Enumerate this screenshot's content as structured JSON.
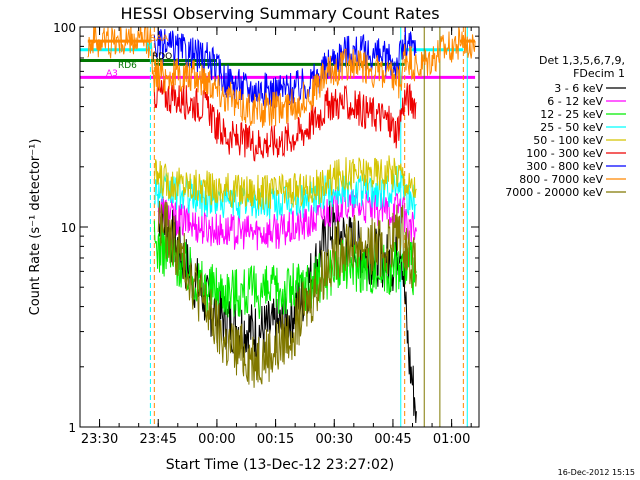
{
  "chart_data": {
    "type": "line",
    "title": "HESSI Observing Summary Count Rates",
    "xlabel": "Start Time (13-Dec-12 23:27:02)",
    "ylabel": "Count Rate (s⁻¹ detector⁻¹)",
    "y_scale": "log",
    "ylim": [
      1,
      100
    ],
    "xlim": [
      "23:25",
      "01:07"
    ],
    "x_ticks": [
      "23:30",
      "23:45",
      "00:00",
      "00:15",
      "00:30",
      "00:45",
      "01:00"
    ],
    "y_ticks": [
      "1",
      "10",
      "100"
    ],
    "timestamp": "16-Dec-2012 15:15",
    "legend": {
      "position": "right",
      "header": [
        "Det 1,3,5,6,7,9,",
        "FDecim 1"
      ],
      "entries": [
        {
          "label": "3 - 6 keV",
          "color": "#000000"
        },
        {
          "label": "6 - 12 keV",
          "color": "#ff00ff"
        },
        {
          "label": "12 - 25 keV",
          "color": "#00ee00"
        },
        {
          "label": "25 - 50 keV",
          "color": "#00ffff"
        },
        {
          "label": "50 - 100 keV",
          "color": "#d4c400"
        },
        {
          "label": "100 - 300 keV",
          "color": "#ee0000"
        },
        {
          "label": "300 - 800 keV",
          "color": "#0000ff"
        },
        {
          "label": "800 - 7000 keV",
          "color": "#ff8800"
        },
        {
          "label": "7000 - 20000 keV",
          "color": "#807800"
        }
      ]
    },
    "flag_labels": [
      {
        "text": "SAA",
        "color": "#ff8800"
      },
      {
        "text": "N",
        "color": "#00ffff"
      },
      {
        "text": "RDO",
        "color": "#000000"
      },
      {
        "text": "RD6",
        "color": "#007700"
      },
      {
        "text": "A3",
        "color": "#ff00ff"
      }
    ],
    "series": [
      {
        "name": "3 - 6 keV",
        "color": "#000000",
        "points": [
          [
            "23:45",
            12
          ],
          [
            "23:48",
            9.5
          ],
          [
            "23:53",
            6
          ],
          [
            "23:58",
            4
          ],
          [
            "00:03",
            3.3
          ],
          [
            "00:10",
            3
          ],
          [
            "00:17",
            3.2
          ],
          [
            "00:22",
            4.5
          ],
          [
            "00:26",
            7
          ],
          [
            "00:29",
            10
          ],
          [
            "00:32",
            9
          ],
          [
            "00:37",
            7.5
          ],
          [
            "00:42",
            7
          ],
          [
            "00:45",
            6.5
          ],
          [
            "00:47",
            9
          ],
          [
            "00:49",
            2.3
          ],
          [
            "00:51",
            1.2
          ]
        ]
      },
      {
        "name": "6 - 12 keV",
        "color": "#ff00ff",
        "points": [
          [
            "23:45",
            12.5
          ],
          [
            "23:50",
            11
          ],
          [
            "23:56",
            10
          ],
          [
            "00:02",
            9.5
          ],
          [
            "00:10",
            9.4
          ],
          [
            "00:18",
            9.6
          ],
          [
            "00:24",
            10.5
          ],
          [
            "00:28",
            12
          ],
          [
            "00:32",
            13
          ],
          [
            "00:38",
            12.5
          ],
          [
            "00:44",
            12
          ],
          [
            "00:47",
            13
          ],
          [
            "00:49",
            10
          ],
          [
            "00:51",
            9.5
          ]
        ]
      },
      {
        "name": "12 - 25 keV",
        "color": "#00ee00",
        "points": [
          [
            "23:44",
            8.2
          ],
          [
            "23:47",
            7.5
          ],
          [
            "23:52",
            6.3
          ],
          [
            "23:57",
            5
          ],
          [
            "00:03",
            4.8
          ],
          [
            "00:10",
            4.7
          ],
          [
            "00:17",
            4.8
          ],
          [
            "00:22",
            5.1
          ],
          [
            "00:27",
            5.6
          ],
          [
            "00:30",
            6.3
          ],
          [
            "00:35",
            6.5
          ],
          [
            "00:42",
            6.1
          ],
          [
            "00:47",
            6.5
          ],
          [
            "00:50",
            6.2
          ],
          [
            "00:51",
            6
          ]
        ]
      },
      {
        "name": "25 - 50 keV",
        "color": "#00ffff",
        "points": [
          [
            "23:44",
            15.5
          ],
          [
            "23:48",
            15
          ],
          [
            "23:53",
            14.3
          ],
          [
            "23:58",
            13.7
          ],
          [
            "00:05",
            13.4
          ],
          [
            "00:12",
            13.2
          ],
          [
            "00:18",
            13.3
          ],
          [
            "00:24",
            13.8
          ],
          [
            "00:28",
            15
          ],
          [
            "00:32",
            15.5
          ],
          [
            "00:37",
            15.2
          ],
          [
            "00:43",
            14.7
          ],
          [
            "00:47",
            18
          ],
          [
            "00:49",
            14
          ],
          [
            "00:51",
            13
          ]
        ]
      },
      {
        "name": "50 - 100 keV",
        "color": "#d4c400",
        "points": [
          [
            "23:44",
            18
          ],
          [
            "23:48",
            16.8
          ],
          [
            "23:52",
            16.3
          ],
          [
            "23:58",
            15.5
          ],
          [
            "00:05",
            15.2
          ],
          [
            "00:12",
            15
          ],
          [
            "00:18",
            15.2
          ],
          [
            "00:24",
            15.5
          ],
          [
            "00:28",
            16.5
          ],
          [
            "00:32",
            18.5
          ],
          [
            "00:37",
            18.7
          ],
          [
            "00:43",
            18.6
          ],
          [
            "00:47",
            18.8
          ],
          [
            "00:49",
            16
          ],
          [
            "00:51",
            15.5
          ]
        ]
      },
      {
        "name": "100 - 300 keV",
        "color": "#ee0000",
        "points": [
          [
            "23:44",
            47
          ],
          [
            "23:48",
            45
          ],
          [
            "23:53",
            42
          ],
          [
            "23:58",
            40
          ],
          [
            "23:59",
            33
          ],
          [
            "00:03",
            28
          ],
          [
            "00:10",
            26
          ],
          [
            "00:17",
            27
          ],
          [
            "00:22",
            30
          ],
          [
            "00:26",
            36
          ],
          [
            "00:29",
            42
          ],
          [
            "00:33",
            41
          ],
          [
            "00:38",
            38
          ],
          [
            "00:43",
            35
          ],
          [
            "00:46",
            30
          ],
          [
            "00:48",
            44
          ],
          [
            "00:50",
            43
          ],
          [
            "00:51",
            42
          ]
        ]
      },
      {
        "name": "300 - 800 keV",
        "color": "#0000ff",
        "points": [
          [
            "23:44",
            80
          ],
          [
            "23:48",
            79
          ],
          [
            "23:53",
            74
          ],
          [
            "23:58",
            68
          ],
          [
            "00:02",
            55
          ],
          [
            "00:08",
            49
          ],
          [
            "00:15",
            48
          ],
          [
            "00:21",
            50
          ],
          [
            "00:26",
            56
          ],
          [
            "00:29",
            67
          ],
          [
            "00:33",
            76
          ],
          [
            "00:38",
            74
          ],
          [
            "00:43",
            70
          ],
          [
            "00:46",
            65
          ],
          [
            "00:48",
            82
          ],
          [
            "00:50",
            78
          ],
          [
            "00:51",
            75
          ]
        ]
      },
      {
        "name": "800 - 7000 keV",
        "color": "#ff8800",
        "points": [
          [
            "23:27",
            85
          ],
          [
            "23:43",
            85
          ],
          [
            "23:44",
            58
          ],
          [
            "23:50",
            57
          ],
          [
            "23:58",
            55
          ],
          [
            "00:00",
            50
          ],
          [
            "00:05",
            41
          ],
          [
            "00:12",
            38
          ],
          [
            "00:19",
            40
          ],
          [
            "00:24",
            46
          ],
          [
            "00:28",
            58
          ],
          [
            "00:33",
            66
          ],
          [
            "00:38",
            63
          ],
          [
            "00:43",
            57
          ],
          [
            "00:47",
            52
          ],
          [
            "00:48",
            72
          ],
          [
            "00:50",
            65
          ],
          [
            "00:51",
            60
          ],
          [
            "01:02",
            85
          ],
          [
            "01:06",
            85
          ]
        ]
      },
      {
        "name": "7000 - 20000 keV",
        "color": "#807800",
        "points": [
          [
            "23:45",
            11
          ],
          [
            "23:48",
            9
          ],
          [
            "23:52",
            6.5
          ],
          [
            "23:57",
            4
          ],
          [
            "00:02",
            2.6
          ],
          [
            "00:09",
            2.2
          ],
          [
            "00:15",
            2.4
          ],
          [
            "00:20",
            3.2
          ],
          [
            "00:25",
            4.8
          ],
          [
            "00:29",
            7
          ],
          [
            "00:33",
            8.5
          ],
          [
            "00:38",
            8.2
          ],
          [
            "00:43",
            7.8
          ],
          [
            "00:47",
            10
          ],
          [
            "00:49",
            7.5
          ],
          [
            "00:51",
            5.8
          ]
        ]
      }
    ],
    "flag_lines": [
      {
        "color": "#ff8800",
        "value": 85,
        "from": "23:27",
        "to": "23:43"
      },
      {
        "color": "#ff8800",
        "value": 85,
        "from": "01:02",
        "to": "01:06"
      },
      {
        "color": "#00ffff",
        "value": 77,
        "from": "23:25",
        "to": "23:43"
      },
      {
        "color": "#00ffff",
        "value": 77,
        "from": "00:48",
        "to": "01:03"
      },
      {
        "color": "#007700",
        "value": 68,
        "from": "23:25",
        "to": "00:00"
      },
      {
        "color": "#007700",
        "value": 65,
        "from": "23:44",
        "to": "00:48"
      },
      {
        "color": "#ff00ff",
        "value": 56,
        "from": "23:25",
        "to": "01:06"
      }
    ],
    "vertical_lines": [
      {
        "time": "23:25",
        "color": "#00ffff",
        "style": "solid"
      },
      {
        "time": "23:43",
        "color": "#00ffff",
        "style": "dashed"
      },
      {
        "time": "23:44",
        "color": "#ff8800",
        "style": "dashed"
      },
      {
        "time": "00:47",
        "color": "#00ffff",
        "style": "solid"
      },
      {
        "time": "00:48",
        "color": "#ff8800",
        "style": "dashed"
      },
      {
        "time": "00:53",
        "color": "#807800",
        "style": "solid"
      },
      {
        "time": "00:57",
        "color": "#807800",
        "style": "solid"
      },
      {
        "time": "01:03",
        "color": "#ff8800",
        "style": "dashed"
      },
      {
        "time": "01:04",
        "color": "#00ffff",
        "style": "solid"
      }
    ]
  }
}
